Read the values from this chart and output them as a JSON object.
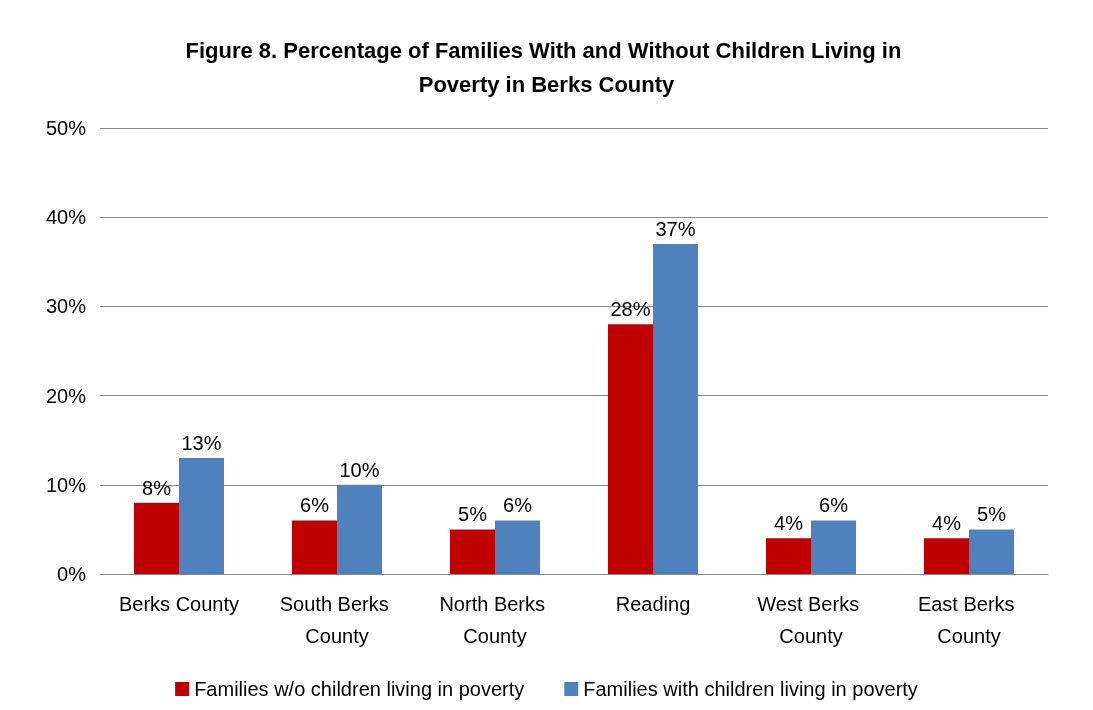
{
  "chart_data": {
    "type": "bar",
    "title": "Figure 8. Percentage of Families With and Without Children Living in Poverty in Berks County",
    "categories": [
      "Berks County",
      "South Berks County",
      "North Berks County",
      "Reading",
      "West Berks County",
      "East Berks County"
    ],
    "series": [
      {
        "name": "Families w/o children living in poverty",
        "color": "#c00000",
        "values": [
          8,
          6,
          5,
          28,
          4,
          4
        ]
      },
      {
        "name": "Families with children living in poverty",
        "color": "#4f81bd",
        "values": [
          13,
          10,
          6,
          37,
          6,
          5
        ]
      }
    ],
    "ylim": [
      0,
      50
    ],
    "yticks": [
      {
        "value": 0,
        "label": "0%"
      },
      {
        "value": 10,
        "label": "10%"
      },
      {
        "value": 20,
        "label": "20%"
      },
      {
        "value": 30,
        "label": "30%"
      },
      {
        "value": 40,
        "label": "40%"
      },
      {
        "value": 50,
        "label": "50%"
      }
    ],
    "value_labels": [
      [
        "8%",
        "6%",
        "5%",
        "28%",
        "4%",
        "4%"
      ],
      [
        "13%",
        "10%",
        "6%",
        "37%",
        "6%",
        "5%"
      ]
    ],
    "grid": "y",
    "legend": "bottom"
  }
}
